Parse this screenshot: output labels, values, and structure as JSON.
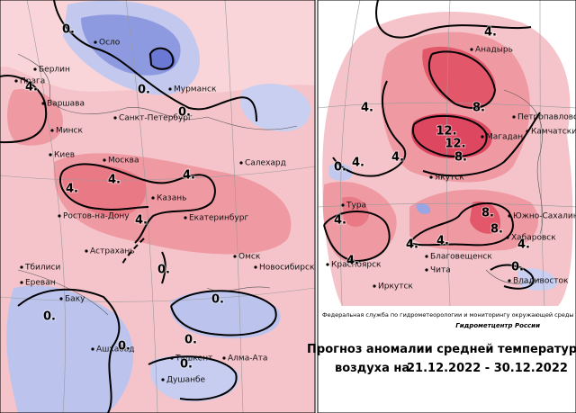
{
  "left_map": {
    "cities": [
      "Осло",
      "Берлин",
      "Прага",
      "Варшава",
      "Мурманск",
      "Санкт-Петербург",
      "Минск",
      "Киев",
      "Москва",
      "Салехард",
      "Казань",
      "Ростов-на-Дону",
      "Екатеринбург",
      "Астрахань",
      "Омск",
      "Тбилиси",
      "Новосибирск",
      "Ереван",
      "Баку",
      "Ашхабад",
      "Ташкент",
      "Алма-Ата",
      "Душанбе"
    ],
    "contour_labels": [
      "0.",
      "0.",
      "0.",
      "4.",
      "4.",
      "4.",
      "4.",
      "4.",
      "0.",
      "0.",
      "0.",
      "0.",
      "0.",
      "0."
    ]
  },
  "right_map": {
    "cities": [
      "Анадырь",
      "Петропавловск",
      "Камчатский",
      "Магадан",
      "Якутск",
      "Тура",
      "Южно-Сахалинск",
      "Хабаровск",
      "Красноярск",
      "Благовещенск",
      "Иркутск",
      "Чита",
      "Владивосток"
    ],
    "contour_labels": [
      "4.",
      "4.",
      "8.",
      "12.",
      "12.",
      "8.",
      "4.",
      "4.",
      "0.",
      "4.",
      "8.",
      "8.",
      "4.",
      "4.",
      "4.",
      "4.",
      "0."
    ]
  },
  "footer": {
    "agency": "Федеральная служба по гидрометеорологии и мониторингу окружающей среды",
    "center": "Гидрометцентр России",
    "title": "Прогноз аномалии средней температуры",
    "period_prefix": "воздуха на",
    "period": "21.12.2022 - 30.12.2022"
  }
}
